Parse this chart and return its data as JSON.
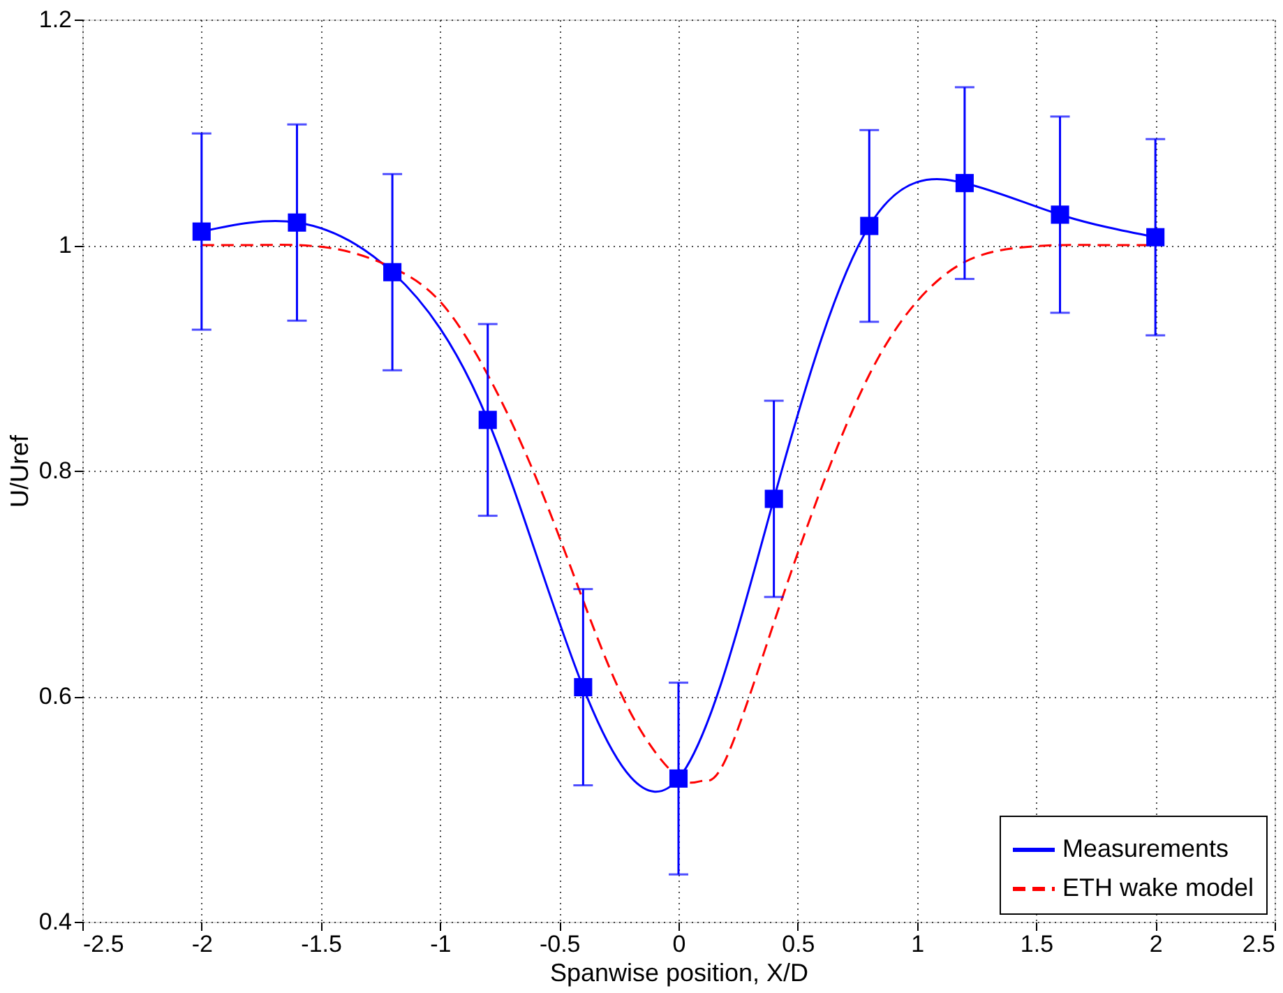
{
  "chart_data": {
    "type": "line",
    "xlabel": "Spanwise position, X/D",
    "ylabel": "U/Uref",
    "xlim": [
      -2.5,
      2.5
    ],
    "xticks": [
      -2.5,
      -2,
      -1.5,
      -1,
      -0.5,
      0,
      0.5,
      1,
      1.5,
      2,
      2.5
    ],
    "ylim": [
      0.4,
      1.2
    ],
    "yticks": [
      0.4,
      0.6,
      0.8,
      1,
      1.2
    ],
    "grid": true,
    "legend": "bottom right",
    "series": [
      {
        "name": "Measurements",
        "color": "#0000ff",
        "marker": "square",
        "line_style": "solid",
        "x": [
          -2,
          -1.6,
          -1.2,
          -0.8,
          -0.4,
          0,
          0.4,
          0.8,
          1.2,
          1.6,
          2
        ],
        "values": [
          1.012,
          1.02,
          0.976,
          0.845,
          0.608,
          0.527,
          0.775,
          1.017,
          1.055,
          1.027,
          1.007
        ],
        "errors": [
          0.087,
          0.087,
          0.087,
          0.085,
          0.087,
          0.085,
          0.087,
          0.085,
          0.085,
          0.087,
          0.087
        ]
      },
      {
        "name": "ETH wake model",
        "color": "#ff0000",
        "marker": "none",
        "line_style": "dashed",
        "x": [
          -2,
          -1.8,
          -1.6,
          -1.4,
          -1.2,
          -1,
          -0.8,
          -0.6,
          -0.4,
          -0.2,
          0,
          0.1,
          0.2,
          0.4,
          0.6,
          0.8,
          1,
          1.2,
          1.4,
          1.6,
          1.8,
          2
        ],
        "values": [
          1,
          1,
          1,
          0.995,
          0.98,
          0.95,
          0.885,
          0.795,
          0.685,
          0.585,
          0.528,
          0.525,
          0.545,
          0.665,
          0.785,
          0.885,
          0.95,
          0.985,
          0.997,
          1,
          1,
          1
        ]
      }
    ]
  }
}
